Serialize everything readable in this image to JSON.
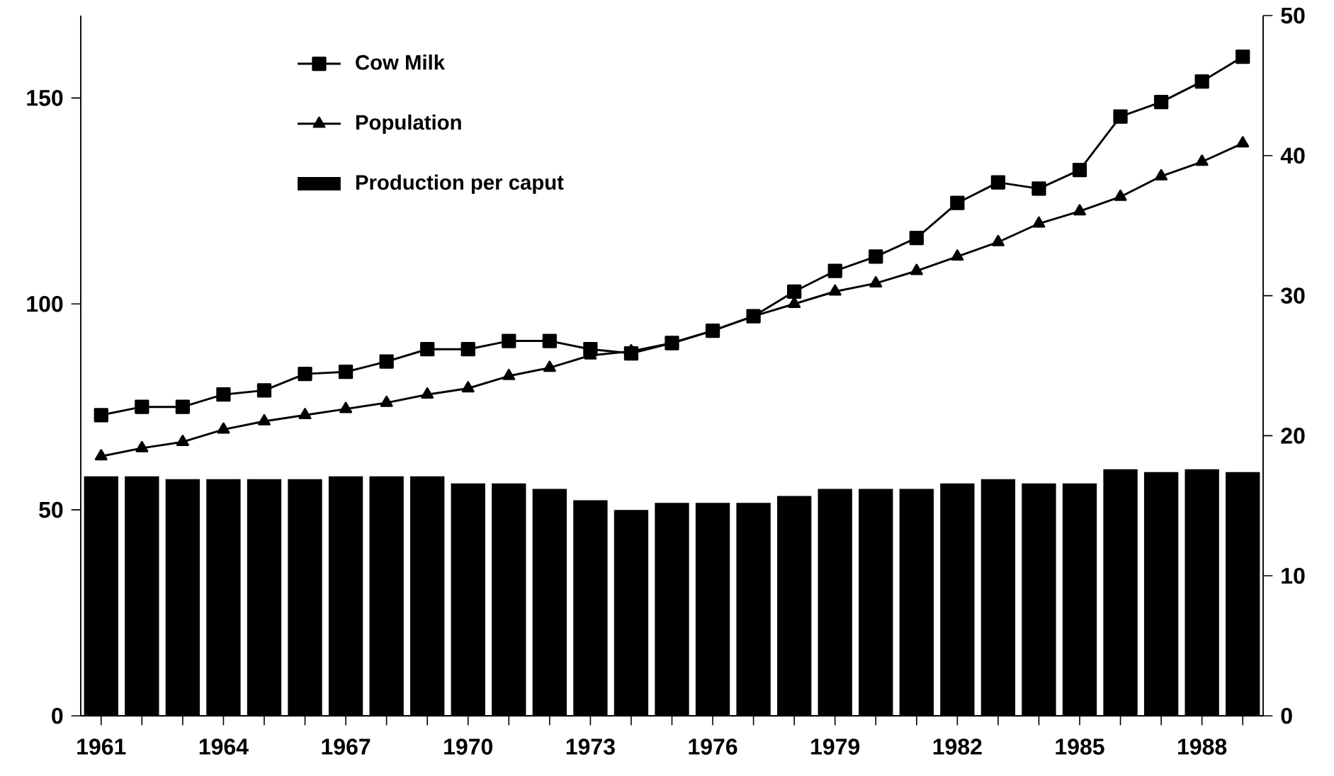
{
  "chart_data": {
    "type": "line",
    "categories": [
      "1961",
      null,
      null,
      "1964",
      null,
      null,
      "1967",
      null,
      null,
      "1970",
      null,
      null,
      "1973",
      null,
      null,
      "1976",
      null,
      null,
      "1979",
      null,
      null,
      "1982",
      null,
      null,
      "1985",
      null,
      null,
      "1988",
      null
    ],
    "series": [
      {
        "name": "Cow Milk",
        "color": "#000000",
        "marker": "square",
        "values": [
          73,
          75,
          75,
          78,
          79,
          83,
          83.5,
          86,
          89,
          89,
          91,
          91,
          89,
          88,
          90.5,
          93.5,
          97,
          103,
          108,
          111.5,
          116,
          124.5,
          129.5,
          128,
          132.5,
          145.5,
          149,
          154,
          160
        ]
      },
      {
        "name": "Population",
        "color": "#000000",
        "marker": "triangle",
        "values": [
          63,
          65,
          66.5,
          69.5,
          71.5,
          73,
          74.5,
          76,
          78,
          79.5,
          82.5,
          84.5,
          87.5,
          88.5,
          90.5,
          93.5,
          97,
          100,
          103,
          105,
          108,
          111.5,
          115,
          119.5,
          122.5,
          126,
          131,
          134.5,
          139
        ]
      },
      {
        "name": "Production per caput",
        "type": "bar",
        "axis": "y2",
        "color": "#000000",
        "values": [
          17.1,
          17.1,
          16.9,
          16.9,
          16.9,
          16.9,
          17.1,
          17.1,
          17.1,
          16.6,
          16.6,
          16.2,
          15.4,
          14.7,
          15.2,
          15.2,
          15.2,
          15.7,
          16.2,
          16.2,
          16.2,
          16.6,
          16.9,
          16.6,
          16.6,
          17.6,
          17.4,
          17.6,
          17.4
        ]
      }
    ],
    "ylim": [
      0,
      170
    ],
    "yticks": [
      0,
      50,
      100,
      150
    ],
    "y2lim": [
      0,
      50
    ],
    "y2ticks": [
      0,
      10,
      20,
      30,
      40,
      50
    ],
    "legend": "top left"
  }
}
